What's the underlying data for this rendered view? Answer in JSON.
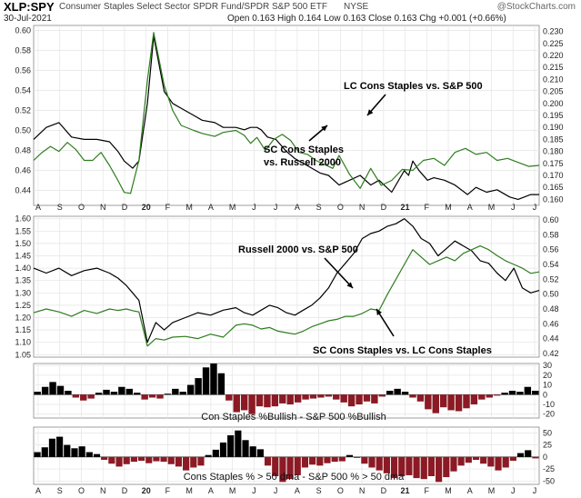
{
  "header": {
    "symbol": "XLP:SPY",
    "description": "Consumer Staples Select Sector SPDR Fund/SPDR S&P 500 ETF",
    "exchange": "NYSE",
    "date": "30-Jul-2021",
    "ohlc": "Open 0.163  High 0.164  Low 0.163  Close 0.163  Chg +0.001 (+0.66%)",
    "watermark": "@StockCharts.com"
  },
  "colors": {
    "black_series": "#000000",
    "green_series": "#2e7d1e",
    "bar_pos": "#000000",
    "bar_neg": "#8b1a24",
    "grid": "#e4e4e4"
  },
  "x_axis": {
    "ticks": [
      "A",
      "S",
      "O",
      "N",
      "D",
      "20",
      "F",
      "M",
      "A",
      "M",
      "J",
      "J",
      "A",
      "S",
      "O",
      "N",
      "D",
      "21",
      "F",
      "M",
      "A",
      "M",
      "J",
      "J"
    ],
    "bold": [
      "20",
      "21"
    ]
  },
  "chart_data": [
    {
      "type": "line",
      "panel": "top",
      "left_ticks": [
        "0.60",
        "0.58",
        "0.56",
        "0.54",
        "0.52",
        "0.50",
        "0.48",
        "0.46",
        "0.44"
      ],
      "right_ticks": [
        "0.230",
        "0.225",
        "0.220",
        "0.215",
        "0.210",
        "0.205",
        "0.200",
        "0.195",
        "0.190",
        "0.185",
        "0.180",
        "0.175",
        "0.170",
        "0.165",
        "0.160"
      ],
      "ylim_left": [
        0.425,
        0.605
      ],
      "ylim_right": [
        0.1575,
        0.2325
      ],
      "series": [
        {
          "name": "LC Cons Staples vs. S&P 500",
          "axis": "right",
          "color": "#000000",
          "x": [
            0,
            6,
            12,
            18,
            24,
            30,
            36,
            40,
            43,
            47,
            50,
            54,
            57,
            62,
            66,
            70,
            76,
            80,
            86,
            90,
            96,
            100,
            103,
            106,
            108,
            111,
            115,
            120,
            124,
            130,
            136,
            140,
            145,
            150,
            155,
            160,
            164,
            170,
            176,
            178,
            180,
            183,
            187,
            190,
            195,
            200,
            206,
            210,
            215,
            220,
            226,
            230,
            236,
            240
          ],
          "y": [
            0.185,
            0.19,
            0.192,
            0.186,
            0.185,
            0.185,
            0.184,
            0.18,
            0.176,
            0.173,
            0.176,
            0.2,
            0.228,
            0.205,
            0.2,
            0.198,
            0.195,
            0.193,
            0.192,
            0.19,
            0.19,
            0.189,
            0.19,
            0.19,
            0.189,
            0.186,
            0.185,
            0.18,
            0.177,
            0.174,
            0.171,
            0.17,
            0.166,
            0.168,
            0.17,
            0.166,
            0.168,
            0.163,
            0.172,
            0.17,
            0.176,
            0.172,
            0.168,
            0.169,
            0.168,
            0.166,
            0.162,
            0.165,
            0.163,
            0.164,
            0.161,
            0.16,
            0.162,
            0.162
          ]
        },
        {
          "name": "SC Cons Staples vs. Russell 2000",
          "axis": "left",
          "color": "#2e7d1e",
          "x": [
            0,
            4,
            8,
            12,
            16,
            20,
            24,
            28,
            32,
            36,
            40,
            43,
            46,
            50,
            54,
            57,
            62,
            66,
            70,
            76,
            80,
            86,
            90,
            96,
            100,
            103,
            106,
            110,
            114,
            118,
            122,
            126,
            130,
            134,
            138,
            142,
            145,
            150,
            155,
            160,
            165,
            170,
            175,
            180,
            185,
            190,
            195,
            200,
            205,
            210,
            215,
            220,
            225,
            230,
            235,
            240
          ],
          "y": [
            0.47,
            0.478,
            0.484,
            0.479,
            0.488,
            0.481,
            0.47,
            0.47,
            0.478,
            0.465,
            0.45,
            0.438,
            0.437,
            0.47,
            0.55,
            0.598,
            0.545,
            0.52,
            0.505,
            0.5,
            0.497,
            0.494,
            0.498,
            0.5,
            0.495,
            0.487,
            0.493,
            0.48,
            0.491,
            0.496,
            0.49,
            0.478,
            0.476,
            0.47,
            0.466,
            0.462,
            0.475,
            0.456,
            0.442,
            0.462,
            0.445,
            0.45,
            0.461,
            0.46,
            0.47,
            0.472,
            0.465,
            0.478,
            0.482,
            0.476,
            0.478,
            0.47,
            0.472,
            0.468,
            0.464,
            0.465
          ]
        }
      ],
      "annotations": [
        "LC Cons Staples vs. S&P 500",
        "SC Cons Staples",
        "vs. Russell 2000"
      ]
    },
    {
      "type": "line",
      "panel": "middle",
      "left_ticks": [
        "1.60",
        "1.55",
        "1.50",
        "1.45",
        "1.40",
        "1.35",
        "1.30",
        "1.25",
        "1.20",
        "1.15",
        "1.10",
        "1.05"
      ],
      "right_ticks": [
        "0.60",
        "0.58",
        "0.56",
        "0.54",
        "0.52",
        "0.50",
        "0.48",
        "0.46",
        "0.44",
        "0.42"
      ],
      "ylim_left": [
        1.04,
        1.61
      ],
      "ylim_right": [
        0.415,
        0.605
      ],
      "series": [
        {
          "name": "Russell 2000 vs. S&P 500",
          "axis": "left",
          "color": "#000000",
          "x": [
            0,
            6,
            12,
            18,
            24,
            30,
            36,
            40,
            44,
            47,
            50,
            54,
            58,
            62,
            66,
            72,
            78,
            84,
            90,
            96,
            100,
            104,
            108,
            112,
            116,
            120,
            124,
            128,
            132,
            136,
            140,
            144,
            148,
            152,
            156,
            160,
            164,
            168,
            172,
            176,
            180,
            184,
            188,
            192,
            196,
            200,
            204,
            208,
            212,
            216,
            220,
            224,
            228,
            232,
            236,
            240
          ],
          "y": [
            1.4,
            1.38,
            1.4,
            1.37,
            1.39,
            1.4,
            1.38,
            1.36,
            1.33,
            1.3,
            1.27,
            1.1,
            1.18,
            1.15,
            1.18,
            1.2,
            1.22,
            1.21,
            1.23,
            1.24,
            1.22,
            1.21,
            1.23,
            1.25,
            1.24,
            1.22,
            1.21,
            1.23,
            1.25,
            1.28,
            1.32,
            1.38,
            1.42,
            1.46,
            1.52,
            1.54,
            1.55,
            1.57,
            1.58,
            1.6,
            1.57,
            1.52,
            1.5,
            1.45,
            1.48,
            1.51,
            1.49,
            1.47,
            1.43,
            1.42,
            1.38,
            1.35,
            1.4,
            1.32,
            1.3,
            1.31
          ]
        },
        {
          "name": "SC Cons Staples vs. LC Cons Staples",
          "axis": "right",
          "color": "#2e7d1e",
          "x": [
            0,
            6,
            12,
            18,
            24,
            30,
            36,
            40,
            44,
            48,
            50,
            54,
            58,
            62,
            66,
            72,
            78,
            84,
            90,
            96,
            100,
            104,
            108,
            112,
            116,
            120,
            124,
            128,
            132,
            136,
            140,
            144,
            148,
            152,
            156,
            160,
            164,
            168,
            172,
            176,
            180,
            184,
            188,
            192,
            196,
            200,
            204,
            208,
            212,
            216,
            220,
            224,
            228,
            232,
            236,
            240
          ],
          "y": [
            0.475,
            0.48,
            0.476,
            0.47,
            0.478,
            0.474,
            0.48,
            0.478,
            0.48,
            0.477,
            0.476,
            0.43,
            0.44,
            0.438,
            0.442,
            0.443,
            0.44,
            0.446,
            0.442,
            0.458,
            0.46,
            0.458,
            0.453,
            0.455,
            0.45,
            0.448,
            0.446,
            0.45,
            0.456,
            0.46,
            0.464,
            0.466,
            0.47,
            0.47,
            0.474,
            0.48,
            0.478,
            0.5,
            0.52,
            0.54,
            0.56,
            0.55,
            0.54,
            0.545,
            0.55,
            0.545,
            0.555,
            0.56,
            0.565,
            0.56,
            0.552,
            0.545,
            0.54,
            0.535,
            0.528,
            0.53
          ]
        }
      ],
      "annotations": [
        "Russell 2000 vs. S&P 500",
        "SC Cons Staples vs. LC Cons Staples"
      ]
    },
    {
      "type": "bar",
      "panel": "bullish",
      "title": "Con Staples %Bullish - S&P 500 %Bullish",
      "right_ticks": [
        "30",
        "20",
        "10",
        "0",
        "-10",
        "-20"
      ],
      "ylim": [
        -24,
        32
      ],
      "values": [
        3,
        8,
        13,
        9,
        4,
        -3,
        -6,
        -4,
        2,
        5,
        3,
        8,
        6,
        2,
        -5,
        -3,
        -4,
        1,
        6,
        3,
        10,
        17,
        28,
        32,
        22,
        -6,
        -18,
        -16,
        -20,
        -12,
        -13,
        -12,
        -9,
        -10,
        -8,
        -5,
        -4,
        -3,
        -2,
        -5,
        -8,
        -12,
        -10,
        -7,
        -9,
        -2,
        4,
        6,
        3,
        -3,
        -7,
        -15,
        -19,
        -13,
        -16,
        -17,
        -14,
        -10,
        -5,
        -3,
        -1,
        2,
        4,
        3,
        8,
        4
      ]
    },
    {
      "type": "bar",
      "panel": "dma",
      "title": "Cons Staples % > 50 dma - S&P 500 % > 50 dma",
      "right_ticks": [
        "50",
        "25",
        "0",
        "-25",
        "-50"
      ],
      "ylim": [
        -57,
        62
      ],
      "values": [
        10,
        20,
        38,
        42,
        25,
        18,
        22,
        10,
        6,
        -6,
        -14,
        -20,
        -15,
        -10,
        -8,
        -13,
        -9,
        -10,
        -15,
        -20,
        -28,
        -22,
        -18,
        4,
        15,
        30,
        45,
        55,
        35,
        22,
        16,
        -18,
        -40,
        -52,
        -46,
        -38,
        -22,
        -16,
        -18,
        -13,
        -10,
        -9,
        4,
        -2,
        -14,
        -22,
        -28,
        -34,
        -44,
        -40,
        -38,
        -44,
        -46,
        -40,
        -52,
        -42,
        -30,
        -18,
        -12,
        -6,
        -14,
        -20,
        -28,
        -22,
        -8,
        8,
        14,
        -3
      ]
    }
  ]
}
